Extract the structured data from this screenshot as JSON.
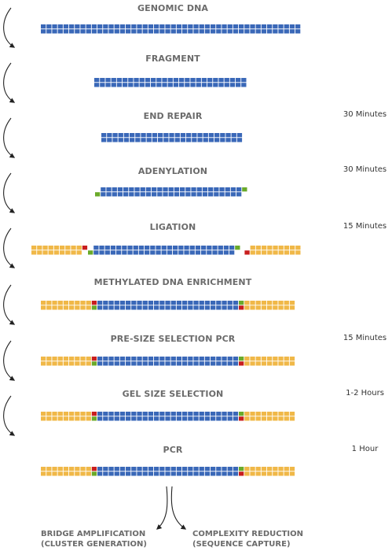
{
  "colors": {
    "genomic": "#3a68b8",
    "adapter": "#f0b848",
    "a_tail": "#6aaa2a",
    "methyl": "#c81e1e",
    "text": "#6b6b6b",
    "arrow": "#222222"
  },
  "steps": [
    {
      "title": "GENOMIC DNA",
      "time": ""
    },
    {
      "title": "FRAGMENT",
      "time": ""
    },
    {
      "title": "END REPAIR",
      "time": "30 Minutes"
    },
    {
      "title": "ADENYLATION",
      "time": "30 Minutes"
    },
    {
      "title": "LIGATION",
      "time": "15 Minutes"
    },
    {
      "title": "METHYLATED DNA ENRICHMENT",
      "time": ""
    },
    {
      "title": "PRE-SIZE SELECTION PCR",
      "time": "15 Minutes"
    },
    {
      "title": "GEL SIZE SELECTION",
      "time": "1-2 Hours"
    },
    {
      "title": "PCR",
      "time": "1 Hour"
    }
  ],
  "outcomes": {
    "left": {
      "line1": "BRIDGE AMPLIFICATION",
      "line2": "(CLUSTER GENERATION)"
    },
    "right": {
      "line1": "COMPLEXITY REDUCTION",
      "line2": "(SEQUENCE CAPTURE)"
    }
  }
}
